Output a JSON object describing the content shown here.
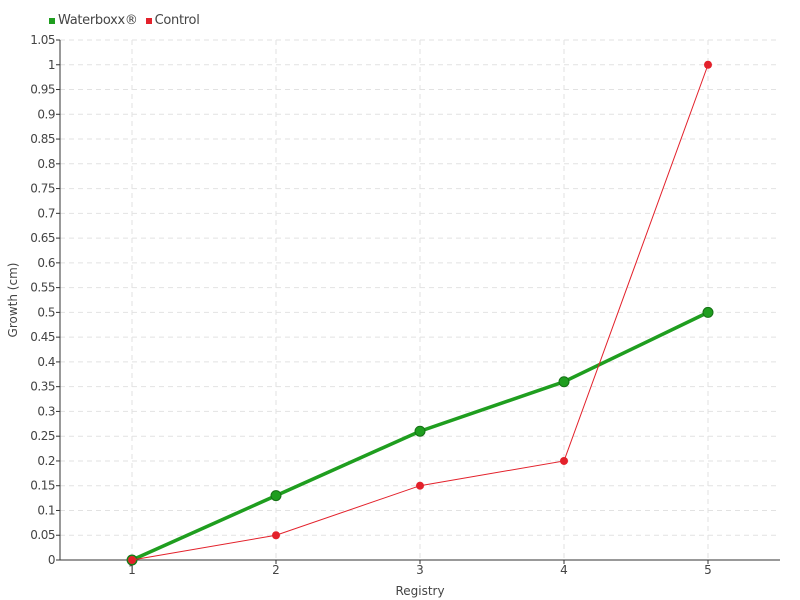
{
  "chart_data": {
    "type": "line",
    "title": "",
    "xlabel": "Registry",
    "ylabel": "Growth (cm)",
    "categories": [
      1,
      2,
      3,
      4,
      5
    ],
    "xlim": [
      0.5,
      5.5
    ],
    "ylim": [
      0,
      1.05
    ],
    "ytick_step": 0.05,
    "grid": true,
    "legend_position": "top-left",
    "series": [
      {
        "name": "Waterboxx®",
        "color": "#1f9e1f",
        "values": [
          0,
          0.13,
          0.26,
          0.36,
          0.5
        ]
      },
      {
        "name": "Control",
        "color": "#e3212b",
        "values": [
          0,
          0.05,
          0.15,
          0.2,
          1.0
        ]
      }
    ]
  }
}
